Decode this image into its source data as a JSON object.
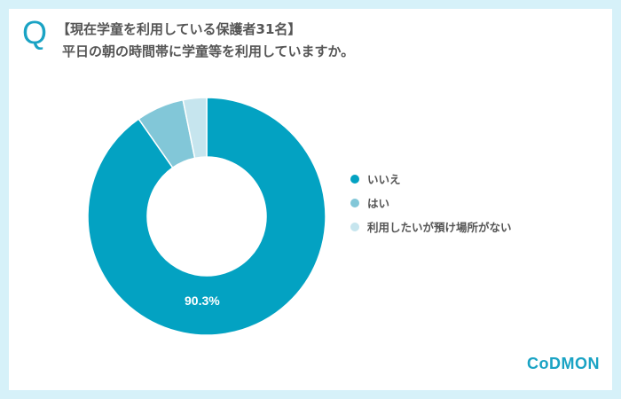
{
  "header": {
    "q_mark": "Q",
    "line1": "【現在学童を利用している保護者31名】",
    "line2": "平日の朝の時間帯に学童等を利用していますか。"
  },
  "chart_data": {
    "type": "pie",
    "title": "平日の朝の時間帯に学童等を利用していますか。",
    "subtitle": "【現在学童を利用している保護者31名】",
    "categories": [
      "いいえ",
      "はい",
      "利用したいが預け場所がない"
    ],
    "values": [
      90.3,
      6.5,
      3.2
    ],
    "colors": [
      "#03a2c2",
      "#82c7d8",
      "#c6e5ee"
    ],
    "data_labels": [
      "90.3%",
      "",
      ""
    ],
    "donut": true,
    "legend_position": "right"
  },
  "legend": [
    {
      "label": "いいえ",
      "color": "#03a2c2"
    },
    {
      "label": "はい",
      "color": "#82c7d8"
    },
    {
      "label": "利用したいが預け場所がない",
      "color": "#c6e5ee"
    }
  ],
  "label_main": "90.3%",
  "logo": "CoDMON"
}
